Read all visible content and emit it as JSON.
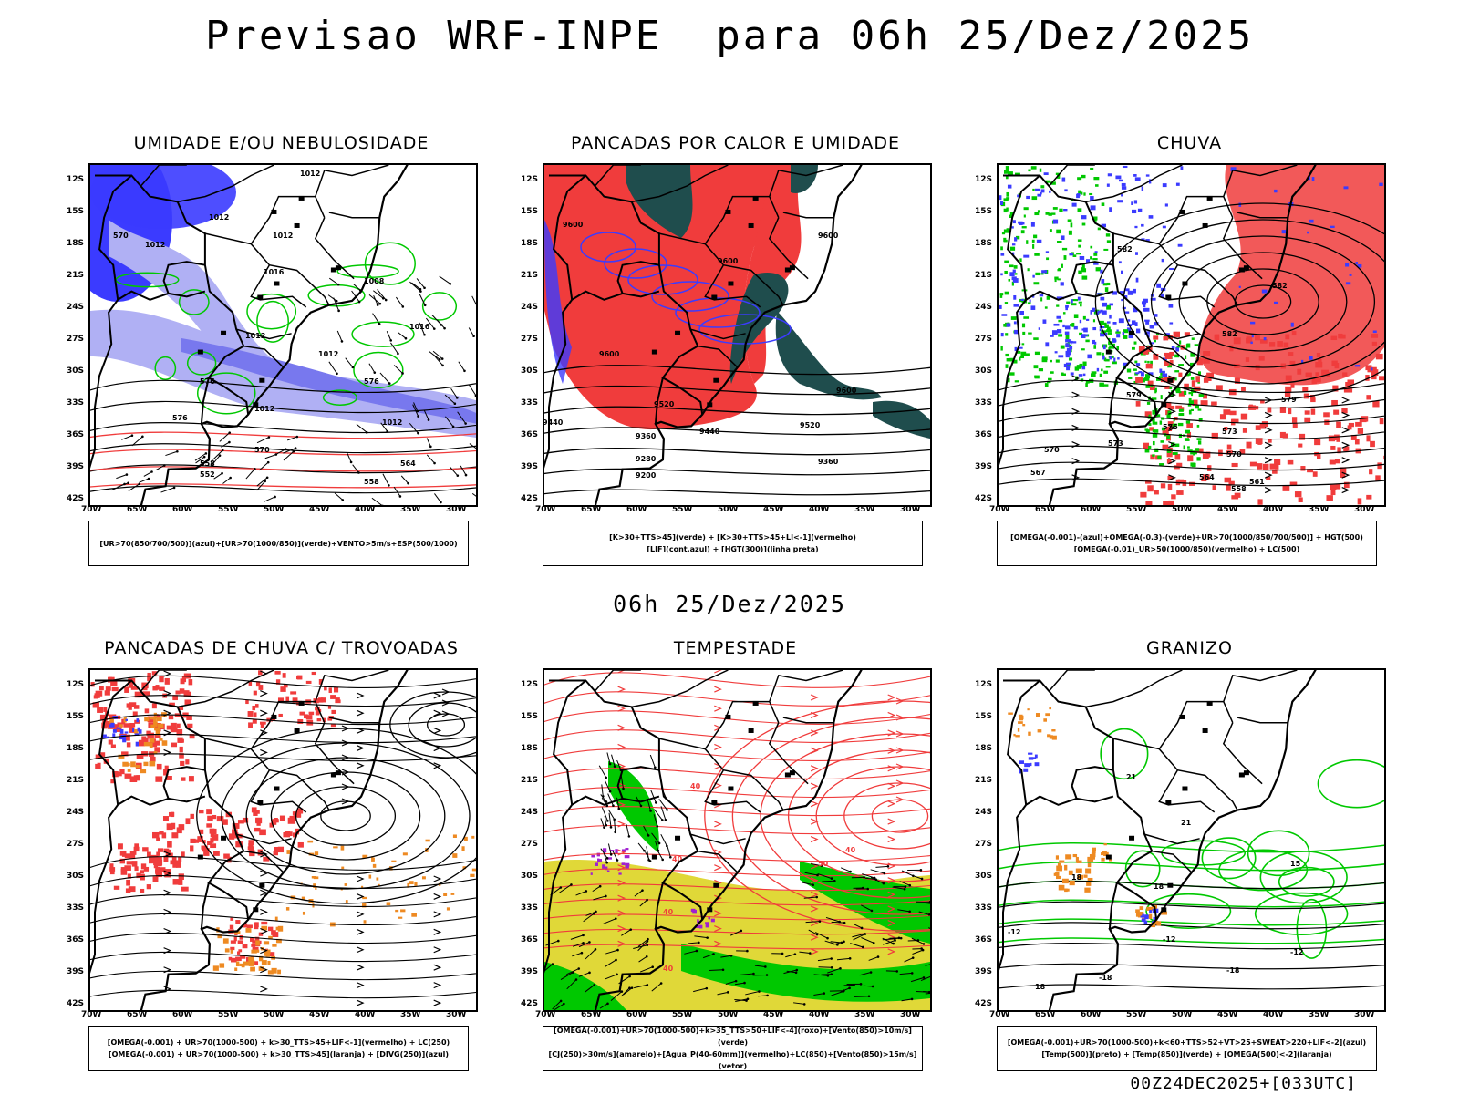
{
  "header": {
    "title": "Previsao WRF-INPE  para 06h 25/Dez/2025",
    "mid_time": "06h 25/Dez/2025",
    "run_label": "00Z24DEC2025+[033UTC]"
  },
  "axes": {
    "lat_labels": [
      "12S",
      "15S",
      "18S",
      "21S",
      "24S",
      "27S",
      "30S",
      "33S",
      "36S",
      "39S",
      "42S"
    ],
    "lon_labels": [
      "70W",
      "65W",
      "60W",
      "55W",
      "50W",
      "45W",
      "40W",
      "35W",
      "30W"
    ]
  },
  "colors": {
    "blue": "#3b3bff",
    "light_blue": "#b0b0f4",
    "green": "#00c800",
    "red": "#f03c3c",
    "dark_teal": "#1f4d4d",
    "yellow": "#e0d838",
    "orange": "#ee8a22",
    "purple": "#a020d0"
  },
  "panels": [
    {
      "title": "UMIDADE E/OU NEBULOSIDADE",
      "caption": [
        "[UR>70(850/700/500)](azul)+[UR>70(1000/850)](verde)+VENTO>5m/s+ESP(500/1000)"
      ],
      "contour_labels": [
        "1012",
        "1012",
        "1012",
        "1012",
        "1008",
        "1016",
        "1012",
        "1016",
        "1012",
        "1012",
        "1012",
        "570",
        "576",
        "576",
        "576",
        "570",
        "564",
        "558",
        "552",
        "558"
      ]
    },
    {
      "title": "PANCADAS POR CALOR E UMIDADE",
      "caption": [
        "[K>30+TTS>45](verde) + [K>30+TTS>45+LI<-1](vermelho)",
        "[LIF](cont.azul) + [HGT(300)](linha preta)"
      ],
      "contour_labels": [
        "9600",
        "9600",
        "9600",
        "9600",
        "9520",
        "9440",
        "9360",
        "9280",
        "9200",
        "9600",
        "9520",
        "9440",
        "9360"
      ]
    },
    {
      "title": "CHUVA",
      "caption": [
        "[OMEGA(-0.001)-(azul)+OMEGA(-0.3)-(verde)+UR>70(1000/850/700/500)] + HGT(500)",
        "[OMEGA(-0.01)_UR>50(1000/850)(vermelho) + LC(500)"
      ],
      "contour_labels": [
        "582",
        "582",
        "582",
        "579",
        "579",
        "576",
        "573",
        "573",
        "570",
        "570",
        "567",
        "564",
        "561",
        "558"
      ]
    },
    {
      "title": "PANCADAS DE CHUVA C/ TROVOADAS",
      "caption": [
        "[OMEGA(-0.001) + UR>70(1000-500) + k>30_TTS>45+LIF<-1](vermelho) + LC(250)",
        "[OMEGA(-0.001) + UR>70(1000-500) + k>30_TTS>45](laranja) + [DIVG(250)](azul)"
      ],
      "contour_labels": []
    },
    {
      "title": "TEMPESTADE",
      "caption": [
        "[OMEGA(-0.001)+UR>70(1000-500)+k>35_TTS>50+LIF<-4](roxo)+[Vento(850)>10m/s](verde)",
        "[CJ(250)>30m/s](amarelo)+[Agua_P(40-60mm)](vermelho)+LC(850)+[Vento(850)>15m/s](vetor)"
      ],
      "contour_labels": [
        "40",
        "40",
        "40",
        "50",
        "40",
        "40"
      ]
    },
    {
      "title": "GRANIZO",
      "caption": [
        "[OMEGA(-0.001)+UR>70(1000-500)+k<60+TTS>52+VT>25+SWEAT>220+LIF<-2](azul)",
        "[Temp(500)](preto) + [Temp(850)](verde) + [OMEGA(500)<-2](laranja)"
      ],
      "contour_labels": [
        "21",
        "21",
        "18",
        "18",
        "-12",
        "-12",
        "-12",
        "-18",
        "-18",
        "15",
        "18"
      ]
    }
  ]
}
